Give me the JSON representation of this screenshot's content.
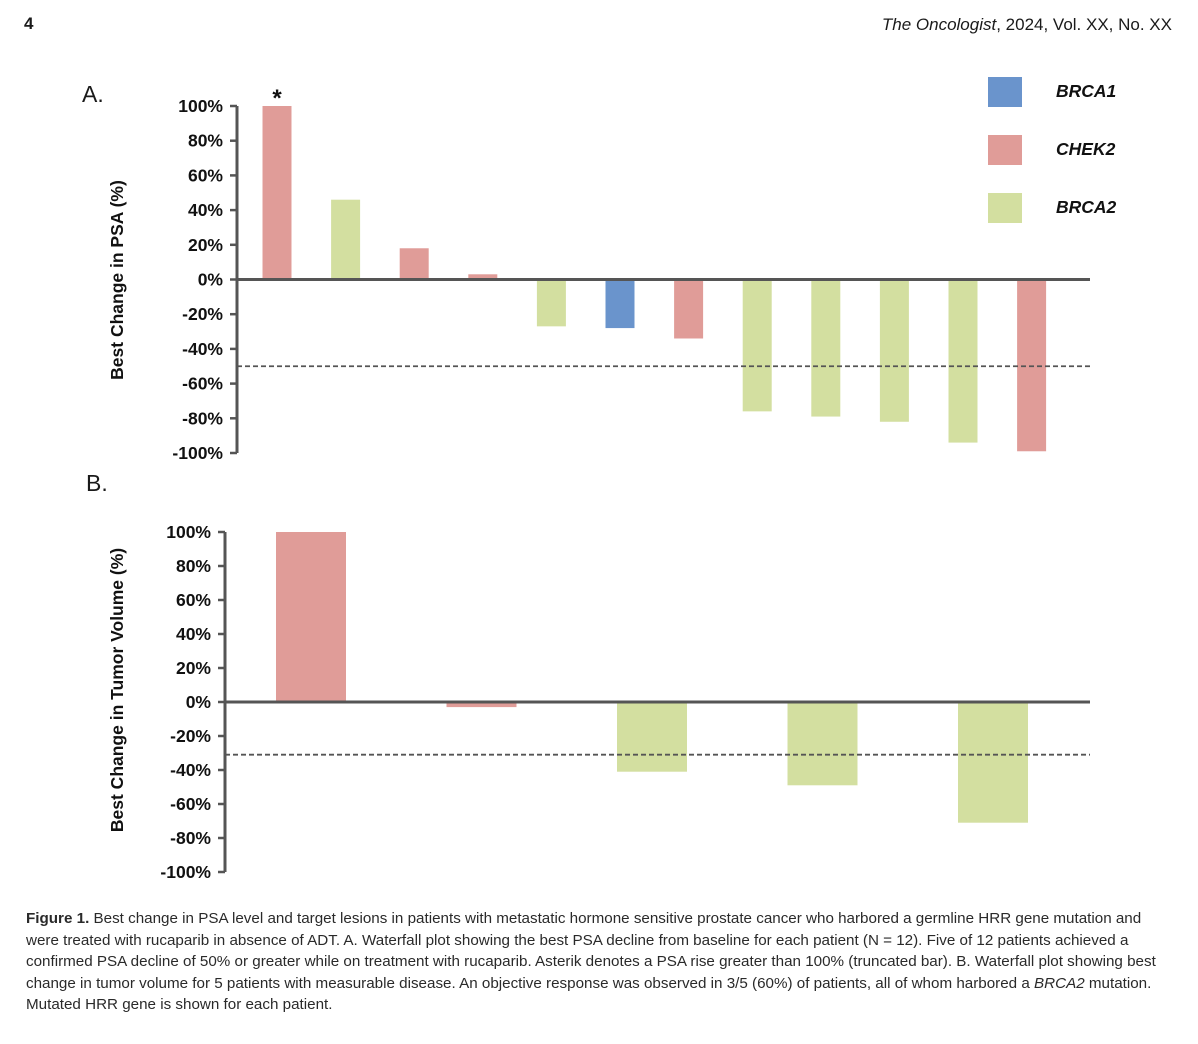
{
  "header": {
    "page_number": "4",
    "journal": "The Oncologist",
    "citation_rest": ", 2024, Vol. XX, No. XX"
  },
  "colors": {
    "BRCA1": "#6a94cc",
    "CHEK2": "#e09c98",
    "BRCA2": "#d3dfa0",
    "axis": "#555555",
    "threshold": "#555555"
  },
  "legend": [
    {
      "label": "BRCA1",
      "color_key": "BRCA1"
    },
    {
      "label": "CHEK2",
      "color_key": "CHEK2"
    },
    {
      "label": "BRCA2",
      "color_key": "BRCA2"
    }
  ],
  "chart_data": [
    {
      "panel_label": "A.",
      "type": "bar",
      "title": "",
      "xlabel": "",
      "ylabel": "Best Change in PSA (%)",
      "ylim": [
        -100,
        100
      ],
      "yticks": [
        "100%",
        "80%",
        "60%",
        "40%",
        "20%",
        "0%",
        "-20%",
        "-40%",
        "-60%",
        "-80%",
        "-100%"
      ],
      "threshold": -50,
      "grid": false,
      "legend_position": "top-right",
      "bars": [
        {
          "value": 100,
          "gene": "CHEK2",
          "annotation": "*"
        },
        {
          "value": 46,
          "gene": "BRCA2"
        },
        {
          "value": 18,
          "gene": "CHEK2"
        },
        {
          "value": 3,
          "gene": "CHEK2"
        },
        {
          "value": -27,
          "gene": "BRCA2"
        },
        {
          "value": -28,
          "gene": "BRCA1"
        },
        {
          "value": -34,
          "gene": "CHEK2"
        },
        {
          "value": -76,
          "gene": "BRCA2"
        },
        {
          "value": -79,
          "gene": "BRCA2"
        },
        {
          "value": -82,
          "gene": "BRCA2"
        },
        {
          "value": -94,
          "gene": "BRCA2"
        },
        {
          "value": -99,
          "gene": "CHEK2"
        }
      ]
    },
    {
      "panel_label": "B.",
      "type": "bar",
      "title": "",
      "xlabel": "",
      "ylabel": "Best Change in Tumor Volume (%)",
      "ylim": [
        -100,
        100
      ],
      "yticks": [
        "100%",
        "80%",
        "60%",
        "40%",
        "20%",
        "0%",
        "-20%",
        "-40%",
        "-60%",
        "-80%",
        "-100%"
      ],
      "threshold": -31,
      "grid": false,
      "bars": [
        {
          "value": 100,
          "gene": "CHEK2"
        },
        {
          "value": -3,
          "gene": "CHEK2"
        },
        {
          "value": -41,
          "gene": "BRCA2"
        },
        {
          "value": -49,
          "gene": "BRCA2"
        },
        {
          "value": -71,
          "gene": "BRCA2"
        }
      ]
    }
  ],
  "caption": {
    "label": "Figure 1.",
    "text_1": " Best change in PSA level and target lesions in patients with metastatic hormone sensitive prostate cancer who harbored a germline HRR gene mutation and were treated with rucaparib in absence of ADT. A. Waterfall plot showing the best PSA decline from baseline for each patient (N = 12). Five of 12 patients achieved a confirmed PSA decline of 50% or greater while on treatment with rucaparib. Asterik denotes a PSA rise greater than 100% (truncated bar). B. Waterfall plot showing best change in tumor volume for 5 patients with measurable disease. An objective response was observed in 3/5 (60%) of patients, all of whom harbored a ",
    "italic": "BRCA2",
    "text_2": " mutation. Mutated HRR gene is shown for each patient."
  }
}
